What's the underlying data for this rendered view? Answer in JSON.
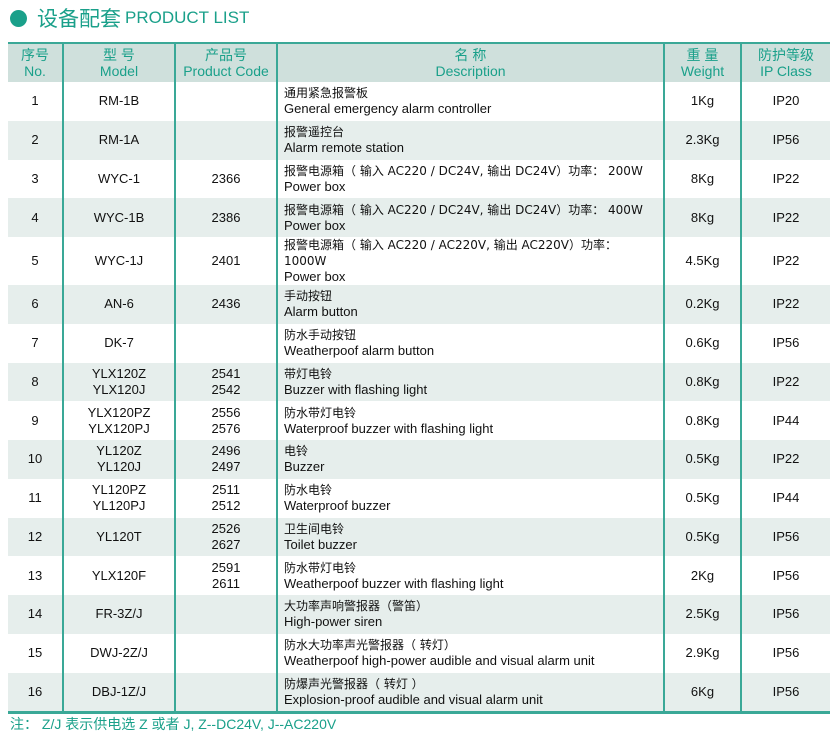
{
  "title": {
    "cn": "设备配套",
    "en": "PRODUCT LIST"
  },
  "accent": "#1aa08a",
  "headers": [
    {
      "cn": "序号",
      "en": "No."
    },
    {
      "cn": "型 号",
      "en": "Model"
    },
    {
      "cn": "产品号",
      "en": "Product Code"
    },
    {
      "cn": "名 称",
      "en": "Description"
    },
    {
      "cn": "重 量",
      "en": "Weight"
    },
    {
      "cn": "防护等级",
      "en": "IP Class"
    }
  ],
  "rows": [
    {
      "no": "1",
      "model": "RM-1B",
      "code": "",
      "desc_cn": "通用紧急报警板",
      "desc_en": "General emergency alarm controller",
      "weight": "1Kg",
      "ip": "IP20"
    },
    {
      "no": "2",
      "model": "RM-1A",
      "code": "",
      "desc_cn": "报警遥控台",
      "desc_en": "Alarm remote station",
      "weight": "2.3Kg",
      "ip": "IP56"
    },
    {
      "no": "3",
      "model": "WYC-1",
      "code": "2366",
      "desc_cn": "报警电源箱（ 输入 AC220 / DC24V, 输出 DC24V）功率： 200W",
      "desc_en": "Power box",
      "weight": "8Kg",
      "ip": "IP22"
    },
    {
      "no": "4",
      "model": "WYC-1B",
      "code": "2386",
      "desc_cn": "报警电源箱（ 输入 AC220 / DC24V, 输出 DC24V）功率： 400W",
      "desc_en": "Power box",
      "weight": "8Kg",
      "ip": "IP22"
    },
    {
      "no": "5",
      "model": "WYC-1J",
      "code": "2401",
      "desc_cn": "报警电源箱（ 输入 AC220 / AC220V, 输出 AC220V）功率： 1000W",
      "desc_en": "Power box",
      "weight": "4.5Kg",
      "ip": "IP22"
    },
    {
      "no": "6",
      "model": "AN-6",
      "code": "2436",
      "desc_cn": "手动按钮",
      "desc_en": "Alarm button",
      "weight": "0.2Kg",
      "ip": "IP22"
    },
    {
      "no": "7",
      "model": "DK-7",
      "code": "",
      "desc_cn": "防水手动按钮",
      "desc_en": "Weatherpoof alarm button",
      "weight": "0.6Kg",
      "ip": "IP56"
    },
    {
      "no": "8",
      "model": "YLX120Z\nYLX120J",
      "code": "2541\n2542",
      "desc_cn": "带灯电铃",
      "desc_en": "Buzzer with flashing light",
      "weight": "0.8Kg",
      "ip": "IP22"
    },
    {
      "no": "9",
      "model": "YLX120PZ\nYLX120PJ",
      "code": "2556\n2576",
      "desc_cn": "防水带灯电铃",
      "desc_en": "Waterproof buzzer with flashing light",
      "weight": "0.8Kg",
      "ip": "IP44"
    },
    {
      "no": "10",
      "model": "YL120Z\nYL120J",
      "code": "2496\n2497",
      "desc_cn": "电铃",
      "desc_en": "Buzzer",
      "weight": "0.5Kg",
      "ip": "IP22"
    },
    {
      "no": "11",
      "model": "YL120PZ\nYL120PJ",
      "code": "2511\n2512",
      "desc_cn": "防水电铃",
      "desc_en": "Waterproof buzzer",
      "weight": "0.5Kg",
      "ip": "IP44"
    },
    {
      "no": "12",
      "model": "YL120T",
      "code": "2526\n2627",
      "desc_cn": "卫生间电铃",
      "desc_en": "Toilet  buzzer",
      "weight": "0.5Kg",
      "ip": "IP56"
    },
    {
      "no": "13",
      "model": "YLX120F",
      "code": "2591\n2611",
      "desc_cn": "防水带灯电铃",
      "desc_en": "Weatherpoof buzzer with flashing light",
      "weight": "2Kg",
      "ip": "IP56"
    },
    {
      "no": "14",
      "model": "FR-3Z/J",
      "code": "",
      "desc_cn": "大功率声响警报器（警笛）",
      "desc_en": "High-power siren",
      "weight": "2.5Kg",
      "ip": "IP56"
    },
    {
      "no": "15",
      "model": "DWJ-2Z/J",
      "code": "",
      "desc_cn": "防水大功率声光警报器（ 转灯）",
      "desc_en": "Weatherpoof high-power audible and visual alarm unit",
      "weight": "2.9Kg",
      "ip": "IP56"
    },
    {
      "no": "16",
      "model": "DBJ-1Z/J",
      "code": "",
      "desc_cn": "防爆声光警报器（ 转灯 ）",
      "desc_en": "Explosion-proof audible and visual alarm unit",
      "weight": "6Kg",
      "ip": "IP56"
    }
  ],
  "note": "注：  Z/J  表示供电选  Z  或者  J, Z--DC24V, J--AC220V"
}
